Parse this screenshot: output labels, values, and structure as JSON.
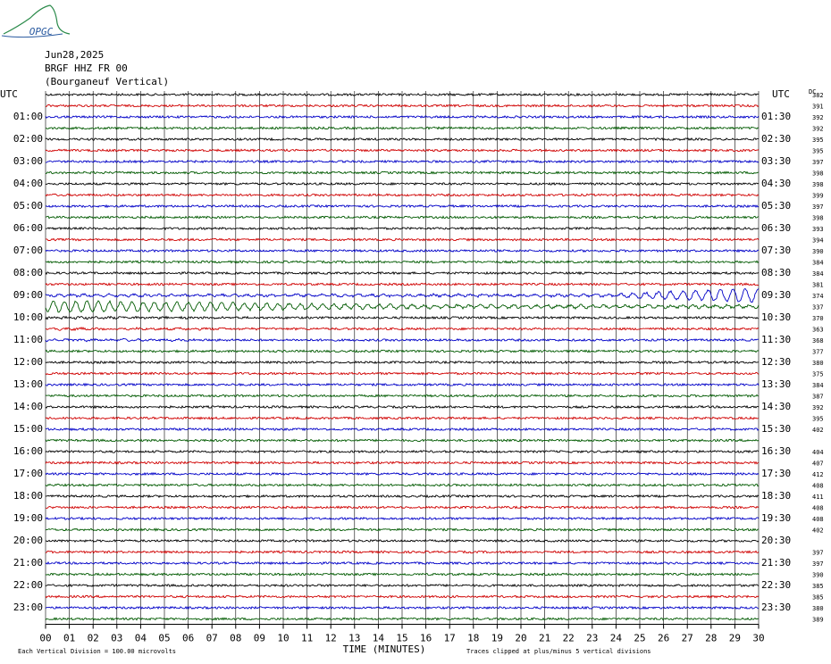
{
  "logo": "OPGC",
  "header": [
    "Jun28,2025",
    "BRGF HHZ FR 00",
    "(Bourganeuf Vertical)"
  ],
  "chart_data": {
    "type": "helicorder",
    "left_labels": [
      "UTC",
      "01:00",
      "02:00",
      "03:00",
      "04:00",
      "05:00",
      "06:00",
      "07:00",
      "08:00",
      "09:00",
      "10:00",
      "11:00",
      "12:00",
      "13:00",
      "14:00",
      "15:00",
      "16:00",
      "17:00",
      "18:00",
      "19:00",
      "20:00",
      "21:00",
      "22:00",
      "23:00"
    ],
    "right_labels": [
      "UTC",
      "01:30",
      "02:30",
      "03:30",
      "04:30",
      "05:30",
      "06:30",
      "07:30",
      "08:30",
      "09:30",
      "10:30",
      "11:30",
      "12:30",
      "13:30",
      "14:30",
      "15:30",
      "16:30",
      "17:30",
      "18:30",
      "19:30",
      "20:30",
      "21:30",
      "22:30",
      "23:30"
    ],
    "dc_title": "DC",
    "dc_values": [
      382,
      391,
      392,
      392,
      395,
      395,
      397,
      398,
      398,
      399,
      397,
      398,
      393,
      394,
      390,
      384,
      384,
      381,
      374,
      337,
      370,
      363,
      368,
      377,
      380,
      375,
      384,
      387,
      392,
      395,
      402,
      null,
      404,
      407,
      412,
      408,
      411,
      408,
      408,
      402,
      null,
      397,
      397,
      390,
      385,
      385,
      380,
      389
    ],
    "colors": [
      "#000000",
      "#d00000",
      "#0000c8",
      "#005a00"
    ],
    "xlim": [
      0,
      30
    ],
    "xticks": [
      {
        "value": 0,
        "label": "00"
      },
      {
        "value": 1,
        "label": "01"
      },
      {
        "value": 2,
        "label": "02"
      },
      {
        "value": 3,
        "label": "03"
      },
      {
        "value": 4,
        "label": "04"
      },
      {
        "value": 5,
        "label": "05"
      },
      {
        "value": 6,
        "label": "06"
      },
      {
        "value": 7,
        "label": "07"
      },
      {
        "value": 8,
        "label": "08"
      },
      {
        "value": 9,
        "label": "09"
      },
      10,
      11,
      12,
      13,
      14,
      15,
      16,
      17,
      18,
      19,
      20,
      21,
      22,
      23,
      24,
      25,
      26,
      27,
      28,
      29,
      30
    ],
    "xlabel": "TIME (MINUTES)",
    "grid": true,
    "footer_left": "Each Vertical Division =  100.00 microvolts",
    "footer_right": "Traces clipped at plus/minus 5 vertical divisions"
  }
}
